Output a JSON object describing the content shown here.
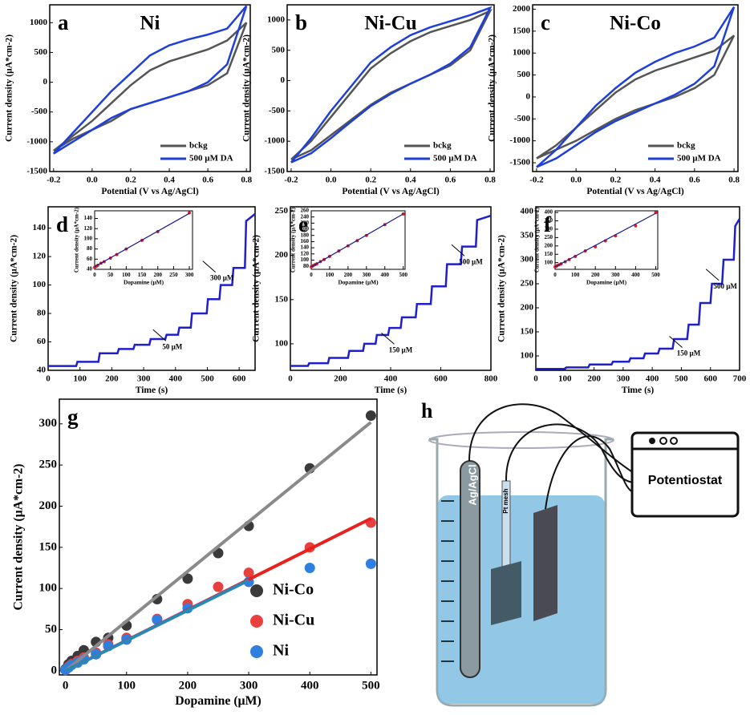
{
  "chart_data": [
    {
      "type": "line",
      "label": "a",
      "title": "Ni",
      "x_label": "Potential (V vs Ag/AgCl)",
      "y_label": "Current density (µA*cm-2)",
      "x": [
        -0.2,
        -0.1,
        0,
        0.1,
        0.2,
        0.3,
        0.4,
        0.5,
        0.6,
        0.7,
        0.8,
        0.8,
        0.7,
        0.6,
        0.5,
        0.4,
        0.3,
        0.2,
        0.1,
        0,
        -0.1,
        -0.2
      ],
      "xlim": [
        -0.22,
        0.82
      ],
      "xticks": [
        -0.2,
        {
          "value": 0,
          "label": "0.0"
        },
        0.2,
        0.4,
        0.6,
        0.8
      ],
      "ylim": [
        -1500,
        1300
      ],
      "yticks": [
        -1500,
        -1000,
        -500,
        0,
        500,
        1000
      ],
      "legend": "lower right",
      "series": [
        {
          "name": "bckg",
          "color": "#555555",
          "values": [
            -1150,
            -900,
            -650,
            -350,
            -50,
            200,
            350,
            450,
            550,
            700,
            1000,
            1000,
            150,
            -50,
            -150,
            -250,
            -350,
            -450,
            -650,
            -800,
            -950,
            -1150
          ]
        },
        {
          "name": "500 µM DA",
          "color": "#1f3fdc",
          "values": [
            -1200,
            -850,
            -500,
            -150,
            150,
            450,
            620,
            720,
            800,
            900,
            1280,
            1280,
            300,
            0,
            -150,
            -250,
            -350,
            -450,
            -600,
            -800,
            -1000,
            -1200
          ]
        }
      ]
    },
    {
      "type": "line",
      "label": "b",
      "title": "Ni-Cu",
      "x_label": "Potential (V vs Ag/AgCl)",
      "y_label": "Current density (µA*cm-2)",
      "x": [
        -0.2,
        -0.1,
        0,
        0.1,
        0.2,
        0.3,
        0.4,
        0.5,
        0.6,
        0.7,
        0.8,
        0.8,
        0.7,
        0.6,
        0.5,
        0.4,
        0.3,
        0.2,
        0.1,
        0,
        -0.1,
        -0.2
      ],
      "xlim": [
        -0.22,
        0.82
      ],
      "xticks": [
        -0.2,
        {
          "value": 0,
          "label": "0.0"
        },
        0.2,
        0.4,
        0.6,
        0.8
      ],
      "ylim": [
        -1500,
        1250
      ],
      "yticks": [
        -1500,
        -1000,
        -500,
        0,
        500,
        1000
      ],
      "legend": "lower right",
      "series": [
        {
          "name": "bckg",
          "color": "#555555",
          "values": [
            -1300,
            -1000,
            -600,
            -200,
            200,
            450,
            650,
            800,
            900,
            1000,
            1150,
            1150,
            500,
            250,
            100,
            -50,
            -200,
            -400,
            -650,
            -900,
            -1150,
            -1300
          ]
        },
        {
          "name": "500 µM DA",
          "color": "#1f3fdc",
          "values": [
            -1350,
            -950,
            -500,
            -100,
            300,
            550,
            750,
            880,
            980,
            1080,
            1200,
            1200,
            550,
            280,
            100,
            -50,
            -220,
            -420,
            -680,
            -950,
            -1200,
            -1350
          ]
        }
      ]
    },
    {
      "type": "line",
      "label": "c",
      "title": "Ni-Co",
      "x_label": "Potential (V vs Ag/AgCl)",
      "y_label": "Current density (µA*cm-2)",
      "x": [
        -0.2,
        -0.1,
        0,
        0.1,
        0.2,
        0.3,
        0.4,
        0.5,
        0.6,
        0.7,
        0.8,
        0.8,
        0.7,
        0.6,
        0.5,
        0.4,
        0.3,
        0.2,
        0.1,
        0,
        -0.1,
        -0.2
      ],
      "xlim": [
        -0.22,
        0.82
      ],
      "xticks": [
        -0.2,
        {
          "value": 0,
          "label": "0.0"
        },
        0.2,
        0.4,
        0.6,
        0.8
      ],
      "ylim": [
        -1700,
        2100
      ],
      "yticks": [
        -1500,
        -1000,
        -500,
        0,
        500,
        1000,
        1500,
        2000
      ],
      "legend": "lower right",
      "series": [
        {
          "name": "bckg",
          "color": "#555555",
          "values": [
            -1400,
            -1100,
            -700,
            -300,
            100,
            400,
            600,
            750,
            900,
            1050,
            1400,
            1400,
            500,
            200,
            0,
            -150,
            -300,
            -500,
            -750,
            -1000,
            -1200,
            -1400
          ]
        },
        {
          "name": "500 µM DA",
          "color": "#1f3fdc",
          "values": [
            -1600,
            -1200,
            -700,
            -200,
            200,
            550,
            800,
            1000,
            1150,
            1350,
            2050,
            2050,
            700,
            300,
            50,
            -150,
            -350,
            -550,
            -800,
            -1100,
            -1400,
            -1600
          ]
        }
      ]
    },
    {
      "type": "line",
      "label": "d",
      "x_label": "Time (s)",
      "y_label": "Current density (µA*cm-2)",
      "x": [
        0,
        88,
        92,
        158,
        162,
        218,
        222,
        268,
        272,
        318,
        322,
        368,
        372,
        408,
        412,
        448,
        452,
        498,
        502,
        538,
        542,
        578,
        582,
        618,
        622,
        650
      ],
      "xlim": [
        0,
        650
      ],
      "xticks": [
        0,
        100,
        200,
        300,
        400,
        500,
        600
      ],
      "ylim": [
        40,
        155
      ],
      "yticks": [
        40,
        60,
        80,
        100,
        120,
        140
      ],
      "series": [
        {
          "color": "#1f1fcc",
          "values": [
            43,
            43,
            46,
            46,
            52,
            52,
            55,
            55,
            58,
            58,
            62,
            62,
            65,
            65,
            70,
            70,
            80,
            80,
            90,
            90,
            100,
            100,
            112,
            112,
            145,
            150
          ]
        }
      ],
      "annotations": [
        "50 µM",
        "300 µM"
      ],
      "inset": {
        "type": "scatter",
        "x_label": "Dopamine (µM)",
        "y_label": "Current density (µA*cm-2)",
        "x": [
          0,
          5,
          10,
          20,
          30,
          50,
          70,
          100,
          150,
          200,
          300
        ],
        "values": [
          44,
          46,
          48,
          52,
          55,
          62,
          69,
          80,
          97,
          114,
          151
        ],
        "color": "#e02020",
        "xlim": [
          0,
          310
        ],
        "xticks": [
          0,
          50,
          100,
          150,
          200,
          250,
          300
        ],
        "ylim": [
          40,
          155
        ],
        "yticks": [
          40,
          60,
          80,
          100,
          120,
          140
        ],
        "fit": {
          "x": [
            0,
            300
          ],
          "values": [
            45,
            150
          ],
          "color": "#1a1a90"
        }
      }
    },
    {
      "type": "line",
      "label": "e",
      "x_label": "Time (s)",
      "y_label": "Current density (µA*cm-2)",
      "x": [
        0,
        70,
        75,
        150,
        155,
        230,
        235,
        290,
        295,
        340,
        345,
        390,
        395,
        440,
        445,
        500,
        505,
        560,
        565,
        620,
        625,
        680,
        685,
        740,
        745,
        800
      ],
      "xlim": [
        0,
        800
      ],
      "xticks": [
        0,
        200,
        400,
        600,
        800
      ],
      "ylim": [
        70,
        255
      ],
      "yticks": [
        100,
        150,
        200,
        250
      ],
      "series": [
        {
          "color": "#1f1fcc",
          "values": [
            75,
            75,
            78,
            78,
            84,
            84,
            92,
            92,
            100,
            100,
            110,
            110,
            118,
            118,
            130,
            130,
            145,
            145,
            165,
            165,
            190,
            190,
            210,
            210,
            240,
            245
          ]
        }
      ],
      "annotations": [
        "150 µM",
        "500 µM"
      ],
      "inset": {
        "type": "scatter",
        "x_label": "Dopamine (µM)",
        "y_label": "Current density (µA*cm-2)",
        "x": [
          0,
          5,
          10,
          20,
          30,
          50,
          70,
          100,
          150,
          200,
          250,
          300,
          400,
          500
        ],
        "values": [
          78,
          80,
          82,
          85,
          88,
          95,
          102,
          112,
          130,
          146,
          163,
          180,
          215,
          250
        ],
        "color": "#e02020",
        "xlim": [
          0,
          510
        ],
        "xticks": [
          0,
          100,
          200,
          300,
          400,
          500
        ],
        "ylim": [
          70,
          260
        ],
        "yticks": [
          80,
          100,
          120,
          140,
          160,
          180,
          200,
          220,
          240,
          260
        ],
        "fit": {
          "x": [
            0,
            500
          ],
          "values": [
            78,
            250
          ],
          "color": "#1a1a90"
        }
      }
    },
    {
      "type": "line",
      "label": "f",
      "x_label": "Time (s)",
      "y_label": "Current density (µA*cm-2)",
      "x": [
        0,
        100,
        105,
        180,
        185,
        260,
        265,
        320,
        325,
        370,
        375,
        420,
        425,
        470,
        475,
        520,
        525,
        560,
        565,
        600,
        605,
        640,
        645,
        680,
        685,
        700
      ],
      "xlim": [
        0,
        700
      ],
      "xticks": [
        0,
        100,
        200,
        300,
        400,
        500,
        600,
        700
      ],
      "ylim": [
        70,
        410
      ],
      "yticks": [
        100,
        150,
        200,
        250,
        300,
        350,
        400
      ],
      "series": [
        {
          "color": "#1f1fcc",
          "values": [
            73,
            73,
            76,
            76,
            82,
            82,
            88,
            88,
            95,
            95,
            105,
            105,
            115,
            115,
            135,
            135,
            165,
            165,
            210,
            210,
            250,
            250,
            300,
            300,
            370,
            385
          ]
        }
      ],
      "annotations": [
        "150 µM",
        "500 µM"
      ],
      "inset": {
        "type": "scatter",
        "x_label": "Dopamine (µM)",
        "y_label": "Current density (µA*cm-2)",
        "x": [
          0,
          5,
          10,
          20,
          30,
          50,
          70,
          100,
          150,
          200,
          250,
          300,
          400,
          500
        ],
        "values": [
          75,
          78,
          82,
          87,
          93,
          105,
          118,
          137,
          170,
          195,
          230,
          260,
          320,
          400
        ],
        "color": "#e02020",
        "xlim": [
          0,
          510
        ],
        "xticks": [
          0,
          100,
          200,
          300,
          400,
          500
        ],
        "ylim": [
          60,
          410
        ],
        "yticks": [
          100,
          150,
          200,
          250,
          300,
          350,
          400
        ],
        "fit": {
          "x": [
            0,
            500
          ],
          "values": [
            75,
            395
          ],
          "color": "#1a1a90"
        }
      }
    },
    {
      "type": "scatter",
      "label": "g",
      "x_label": "Dopamine (µM)",
      "y_label": "Current density (µA*cm-2)",
      "x": [
        0,
        5,
        10,
        20,
        30,
        50,
        70,
        100,
        150,
        200,
        250,
        300,
        400,
        500
      ],
      "xlim": [
        -10,
        510
      ],
      "xticks": [
        0,
        100,
        200,
        300,
        400,
        500
      ],
      "ylim": [
        -5,
        330
      ],
      "yticks": [
        0,
        50,
        100,
        150,
        200,
        250,
        300
      ],
      "legend": "lower right",
      "series": [
        {
          "name": "Ni-Co",
          "color": "#3a3a3a",
          "values": [
            2,
            8,
            12,
            18,
            25,
            35,
            40,
            55,
            87,
            112,
            143,
            176,
            246,
            310
          ]
        },
        {
          "name": "Ni-Cu",
          "color": "#e8403f",
          "values": [
            1,
            5,
            8,
            12,
            16,
            22,
            32,
            40,
            63,
            81,
            102,
            119,
            150,
            180
          ]
        },
        {
          "name": "Ni",
          "color": "#2f7fe0",
          "values": [
            1,
            4,
            7,
            10,
            14,
            20,
            30,
            38,
            62,
            76,
            null,
            108,
            125,
            130
          ]
        }
      ],
      "fits": [
        {
          "x": [
            0,
            500
          ],
          "values": [
            0,
            302
          ],
          "color": "#8a8a8a"
        },
        {
          "x": [
            0,
            500
          ],
          "values": [
            0,
            185
          ],
          "color": "#e82020"
        },
        {
          "x": [
            0,
            300
          ],
          "values": [
            0,
            110
          ],
          "color": "#2a88b8"
        }
      ]
    }
  ],
  "diagram": {
    "label": "h",
    "reference": "Ag/AgCl",
    "counter": "Pt mesh",
    "instrument": "Potentiostat"
  }
}
